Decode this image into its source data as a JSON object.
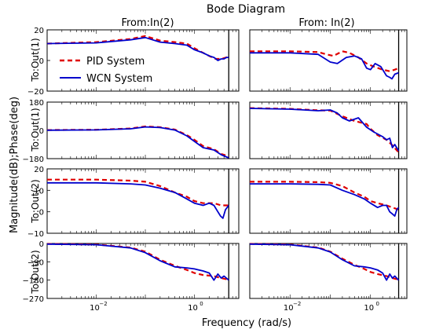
{
  "title": "Bode Diagram",
  "xlabel": "Frequency (rad/s)",
  "ylabel": "Magnitude(dB);Phase(deg)",
  "column_titles": [
    "From:In(2)",
    "From: In(2)"
  ],
  "row_labels": [
    "To:Out(1)",
    "To:Out(1)",
    "To:Out(2)",
    "To:Out(2)"
  ],
  "legend": {
    "entries": [
      "PID System",
      "WCN System"
    ],
    "placement": "upper-left of top-left panel"
  },
  "colors": {
    "pid": "#e00000",
    "wcn": "#0000cc",
    "vline": "#000000"
  },
  "chart_data": {
    "type": "line",
    "x_scale": "log",
    "x_range": [
      0.001,
      8
    ],
    "x_ticks": [
      {
        "value": 0.01,
        "base": "10",
        "exp": "−2"
      },
      {
        "value": 1,
        "base": "10",
        "exp": "0"
      }
    ],
    "vertical_line_x": 5,
    "legend_entries": [
      "PID System",
      "WCN System"
    ],
    "panels": [
      {
        "row": 0,
        "col": 0,
        "ylim": [
          -20,
          20
        ],
        "yticks": [
          "20",
          "0",
          "−20"
        ],
        "ytick_values": [
          20,
          0,
          -20
        ],
        "series": [
          {
            "name": "PID System",
            "style": "dashed",
            "x": [
              0.001,
              0.01,
              0.05,
              0.1,
              0.2,
              0.4,
              0.7,
              1,
              1.5,
              2,
              2.7,
              3.5,
              4.5,
              5
            ],
            "y": [
              11,
              12,
              14,
              16,
              13,
              12,
              11,
              8,
              5,
              3,
              1,
              1,
              2,
              3
            ]
          },
          {
            "name": "WCN System",
            "style": "solid",
            "x": [
              0.001,
              0.01,
              0.05,
              0.1,
              0.2,
              0.4,
              0.7,
              1,
              1.5,
              2,
              2.5,
              3,
              3.5,
              4,
              4.5,
              5
            ],
            "y": [
              11,
              11.5,
              13.5,
              15,
              12,
              11,
              10,
              7,
              5,
              3,
              2,
              0,
              1,
              1,
              2,
              2
            ]
          }
        ]
      },
      {
        "row": 0,
        "col": 1,
        "ylim": [
          -20,
          20
        ],
        "yticks": [],
        "ytick_values": [],
        "series": [
          {
            "name": "PID System",
            "style": "dashed",
            "x": [
              0.001,
              0.01,
              0.05,
              0.08,
              0.12,
              0.2,
              0.3,
              0.5,
              0.8,
              1.2,
              2,
              3,
              4,
              5
            ],
            "y": [
              6,
              6,
              5.5,
              4,
              3,
              6,
              5,
              2,
              -2,
              -4,
              -6,
              -7,
              -6,
              -5
            ]
          },
          {
            "name": "WCN System",
            "style": "solid",
            "x": [
              0.001,
              0.01,
              0.05,
              0.1,
              0.15,
              0.25,
              0.4,
              0.6,
              0.8,
              1,
              1.3,
              1.8,
              2.5,
              3,
              3.4,
              4,
              5
            ],
            "y": [
              5,
              5,
              4,
              -1,
              -2,
              2,
              3,
              1,
              -5,
              -6,
              -2,
              -4,
              -10,
              -11,
              -12,
              -9,
              -8
            ]
          }
        ]
      },
      {
        "row": 1,
        "col": 0,
        "ylim": [
          -180,
          180
        ],
        "yticks": [
          "180",
          "0",
          "−180"
        ],
        "ytick_values": [
          180,
          0,
          -180
        ],
        "series": [
          {
            "name": "PID System",
            "style": "dashed",
            "x": [
              0.001,
              0.01,
              0.05,
              0.1,
              0.2,
              0.4,
              0.7,
              1,
              1.5,
              2.5,
              3.5,
              5
            ],
            "y": [
              2,
              4,
              12,
              25,
              20,
              5,
              -30,
              -60,
              -100,
              -120,
              -150,
              -165
            ]
          },
          {
            "name": "WCN System",
            "style": "solid",
            "x": [
              0.001,
              0.01,
              0.05,
              0.1,
              0.2,
              0.4,
              0.7,
              1,
              1.5,
              2.5,
              3.5,
              5
            ],
            "y": [
              1,
              3,
              10,
              22,
              18,
              2,
              -35,
              -70,
              -110,
              -125,
              -155,
              -175
            ]
          }
        ]
      },
      {
        "row": 1,
        "col": 1,
        "ylim": [
          -180,
          180
        ],
        "yticks": [],
        "ytick_values": [],
        "series": [
          {
            "name": "PID System",
            "style": "dashed",
            "x": [
              0.001,
              0.01,
              0.05,
              0.1,
              0.2,
              0.4,
              0.8,
              1,
              1.5,
              2.5,
              3.5,
              5
            ],
            "y": [
              142,
              137,
              128,
              126,
              90,
              60,
              40,
              10,
              -30,
              -60,
              -95,
              -140
            ]
          },
          {
            "name": "WCN System",
            "style": "solid",
            "x": [
              0.001,
              0.01,
              0.05,
              0.1,
              0.15,
              0.2,
              0.3,
              0.5,
              0.8,
              1.2,
              2,
              2.5,
              3,
              3.5,
              4,
              5
            ],
            "y": [
              140,
              135,
              125,
              130,
              110,
              80,
              60,
              80,
              20,
              -10,
              -40,
              -60,
              -50,
              -110,
              -90,
              -130
            ]
          }
        ]
      },
      {
        "row": 2,
        "col": 0,
        "ylim": [
          -10,
          20
        ],
        "yticks": [
          "20",
          "10",
          "0",
          "−10"
        ],
        "ytick_values": [
          20,
          10,
          0,
          -10
        ],
        "series": [
          {
            "name": "PID System",
            "style": "dashed",
            "x": [
              0.001,
              0.01,
              0.05,
              0.1,
              0.2,
              0.4,
              0.7,
              1,
              1.5,
              2.5,
              3.5,
              5
            ],
            "y": [
              15,
              15,
              14.5,
              14,
              12,
              9,
              7,
              5,
              4,
              4,
              3,
              3
            ]
          },
          {
            "name": "WCN System",
            "style": "solid",
            "x": [
              0.001,
              0.01,
              0.05,
              0.1,
              0.2,
              0.4,
              0.7,
              1,
              1.5,
              2,
              2.5,
              3,
              3.4,
              3.8,
              4.3,
              5
            ],
            "y": [
              13.5,
              13.5,
              13,
              12.5,
              11,
              9,
              6,
              4,
              3,
              4,
              3,
              0,
              -2,
              -3,
              1,
              3
            ]
          }
        ]
      },
      {
        "row": 2,
        "col": 1,
        "ylim": [
          -10,
          20
        ],
        "yticks": [],
        "ytick_values": [],
        "series": [
          {
            "name": "PID System",
            "style": "dashed",
            "x": [
              0.001,
              0.01,
              0.05,
              0.1,
              0.2,
              0.4,
              0.7,
              1,
              1.5,
              2.5,
              3.5,
              5
            ],
            "y": [
              14,
              14,
              13.8,
              13.5,
              12,
              9,
              7,
              5,
              4,
              3,
              2,
              1
            ]
          },
          {
            "name": "WCN System",
            "style": "solid",
            "x": [
              0.001,
              0.01,
              0.05,
              0.1,
              0.2,
              0.4,
              0.7,
              1,
              1.5,
              2,
              2.5,
              3,
              3.5,
              4,
              4.5,
              5
            ],
            "y": [
              13,
              13,
              12.8,
              12.5,
              10,
              8,
              6,
              4,
              2,
              3,
              3,
              0,
              -1,
              -2,
              1,
              2
            ]
          }
        ]
      },
      {
        "row": 3,
        "col": 0,
        "ylim": [
          -270,
          0
        ],
        "yticks": [
          "0",
          "−90",
          "−180",
          "−270"
        ],
        "ytick_values": [
          0,
          -90,
          -180,
          -270
        ],
        "series": [
          {
            "name": "PID System",
            "style": "dashed",
            "x": [
              0.001,
              0.01,
              0.05,
              0.1,
              0.2,
              0.4,
              0.7,
              1,
              1.5,
              2.5,
              3.5,
              5
            ],
            "y": [
              -2,
              -5,
              -20,
              -40,
              -80,
              -110,
              -130,
              -145,
              -155,
              -160,
              -170,
              -178
            ]
          },
          {
            "name": "WCN System",
            "style": "solid",
            "x": [
              0.001,
              0.01,
              0.05,
              0.1,
              0.2,
              0.4,
              0.7,
              1,
              1.5,
              2,
              2.5,
              3,
              3.5,
              4,
              5
            ],
            "y": [
              -3,
              -6,
              -22,
              -45,
              -85,
              -115,
              -120,
              -125,
              -135,
              -145,
              -180,
              -150,
              -170,
              -160,
              -180
            ]
          }
        ]
      },
      {
        "row": 3,
        "col": 1,
        "ylim": [
          -270,
          0
        ],
        "yticks": [],
        "ytick_values": [],
        "series": [
          {
            "name": "PID System",
            "style": "dashed",
            "x": [
              0.001,
              0.01,
              0.05,
              0.1,
              0.2,
              0.4,
              0.7,
              1,
              1.5,
              2.5,
              3.5,
              5
            ],
            "y": [
              -2,
              -5,
              -20,
              -40,
              -75,
              -105,
              -125,
              -140,
              -150,
              -160,
              -170,
              -178
            ]
          },
          {
            "name": "WCN System",
            "style": "solid",
            "x": [
              0.001,
              0.01,
              0.05,
              0.1,
              0.2,
              0.4,
              0.7,
              1,
              1.5,
              2,
              2.5,
              3,
              3.5,
              4,
              5
            ],
            "y": [
              -3,
              -6,
              -22,
              -42,
              -80,
              -110,
              -115,
              -120,
              -130,
              -145,
              -180,
              -150,
              -170,
              -160,
              -180
            ]
          }
        ]
      }
    ]
  }
}
